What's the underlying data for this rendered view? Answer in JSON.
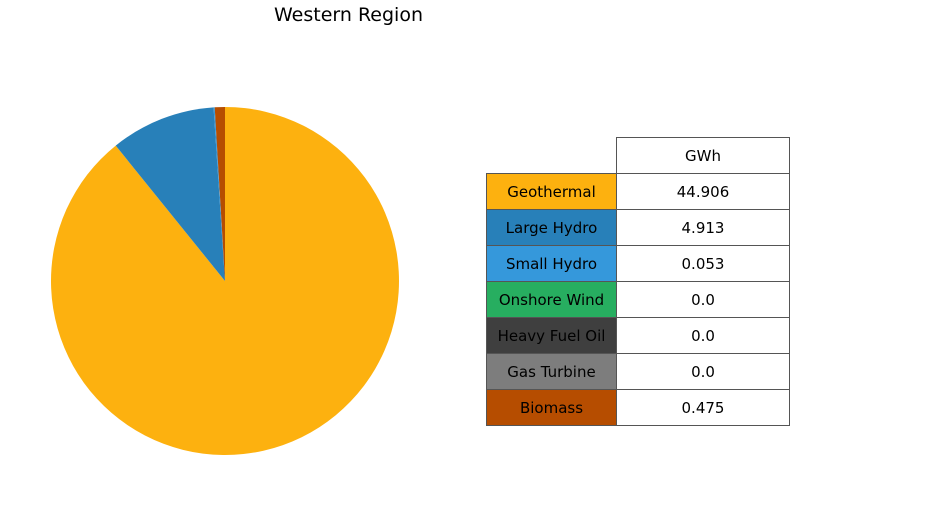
{
  "chart_data": {
    "type": "pie",
    "title": "Western Region",
    "table_header": "GWh",
    "categories": [
      "Geothermal",
      "Large Hydro",
      "Small Hydro",
      "Onshore Wind",
      "Heavy Fuel Oil",
      "Gas Turbine",
      "Biomass"
    ],
    "values": [
      44.906,
      4.913,
      0.053,
      0.0,
      0.0,
      0.0,
      0.475
    ],
    "value_labels": [
      "44.906",
      "4.913",
      "0.053",
      "0.0",
      "0.0",
      "0.0",
      "0.475"
    ],
    "colors": [
      "#fdb10f",
      "#2880b9",
      "#3598db",
      "#27ae60",
      "#3f3f3f",
      "#7d7d7d",
      "#b64d00"
    ],
    "start_angle_deg": 90,
    "direction": "clockwise",
    "legend_placement": "right"
  }
}
